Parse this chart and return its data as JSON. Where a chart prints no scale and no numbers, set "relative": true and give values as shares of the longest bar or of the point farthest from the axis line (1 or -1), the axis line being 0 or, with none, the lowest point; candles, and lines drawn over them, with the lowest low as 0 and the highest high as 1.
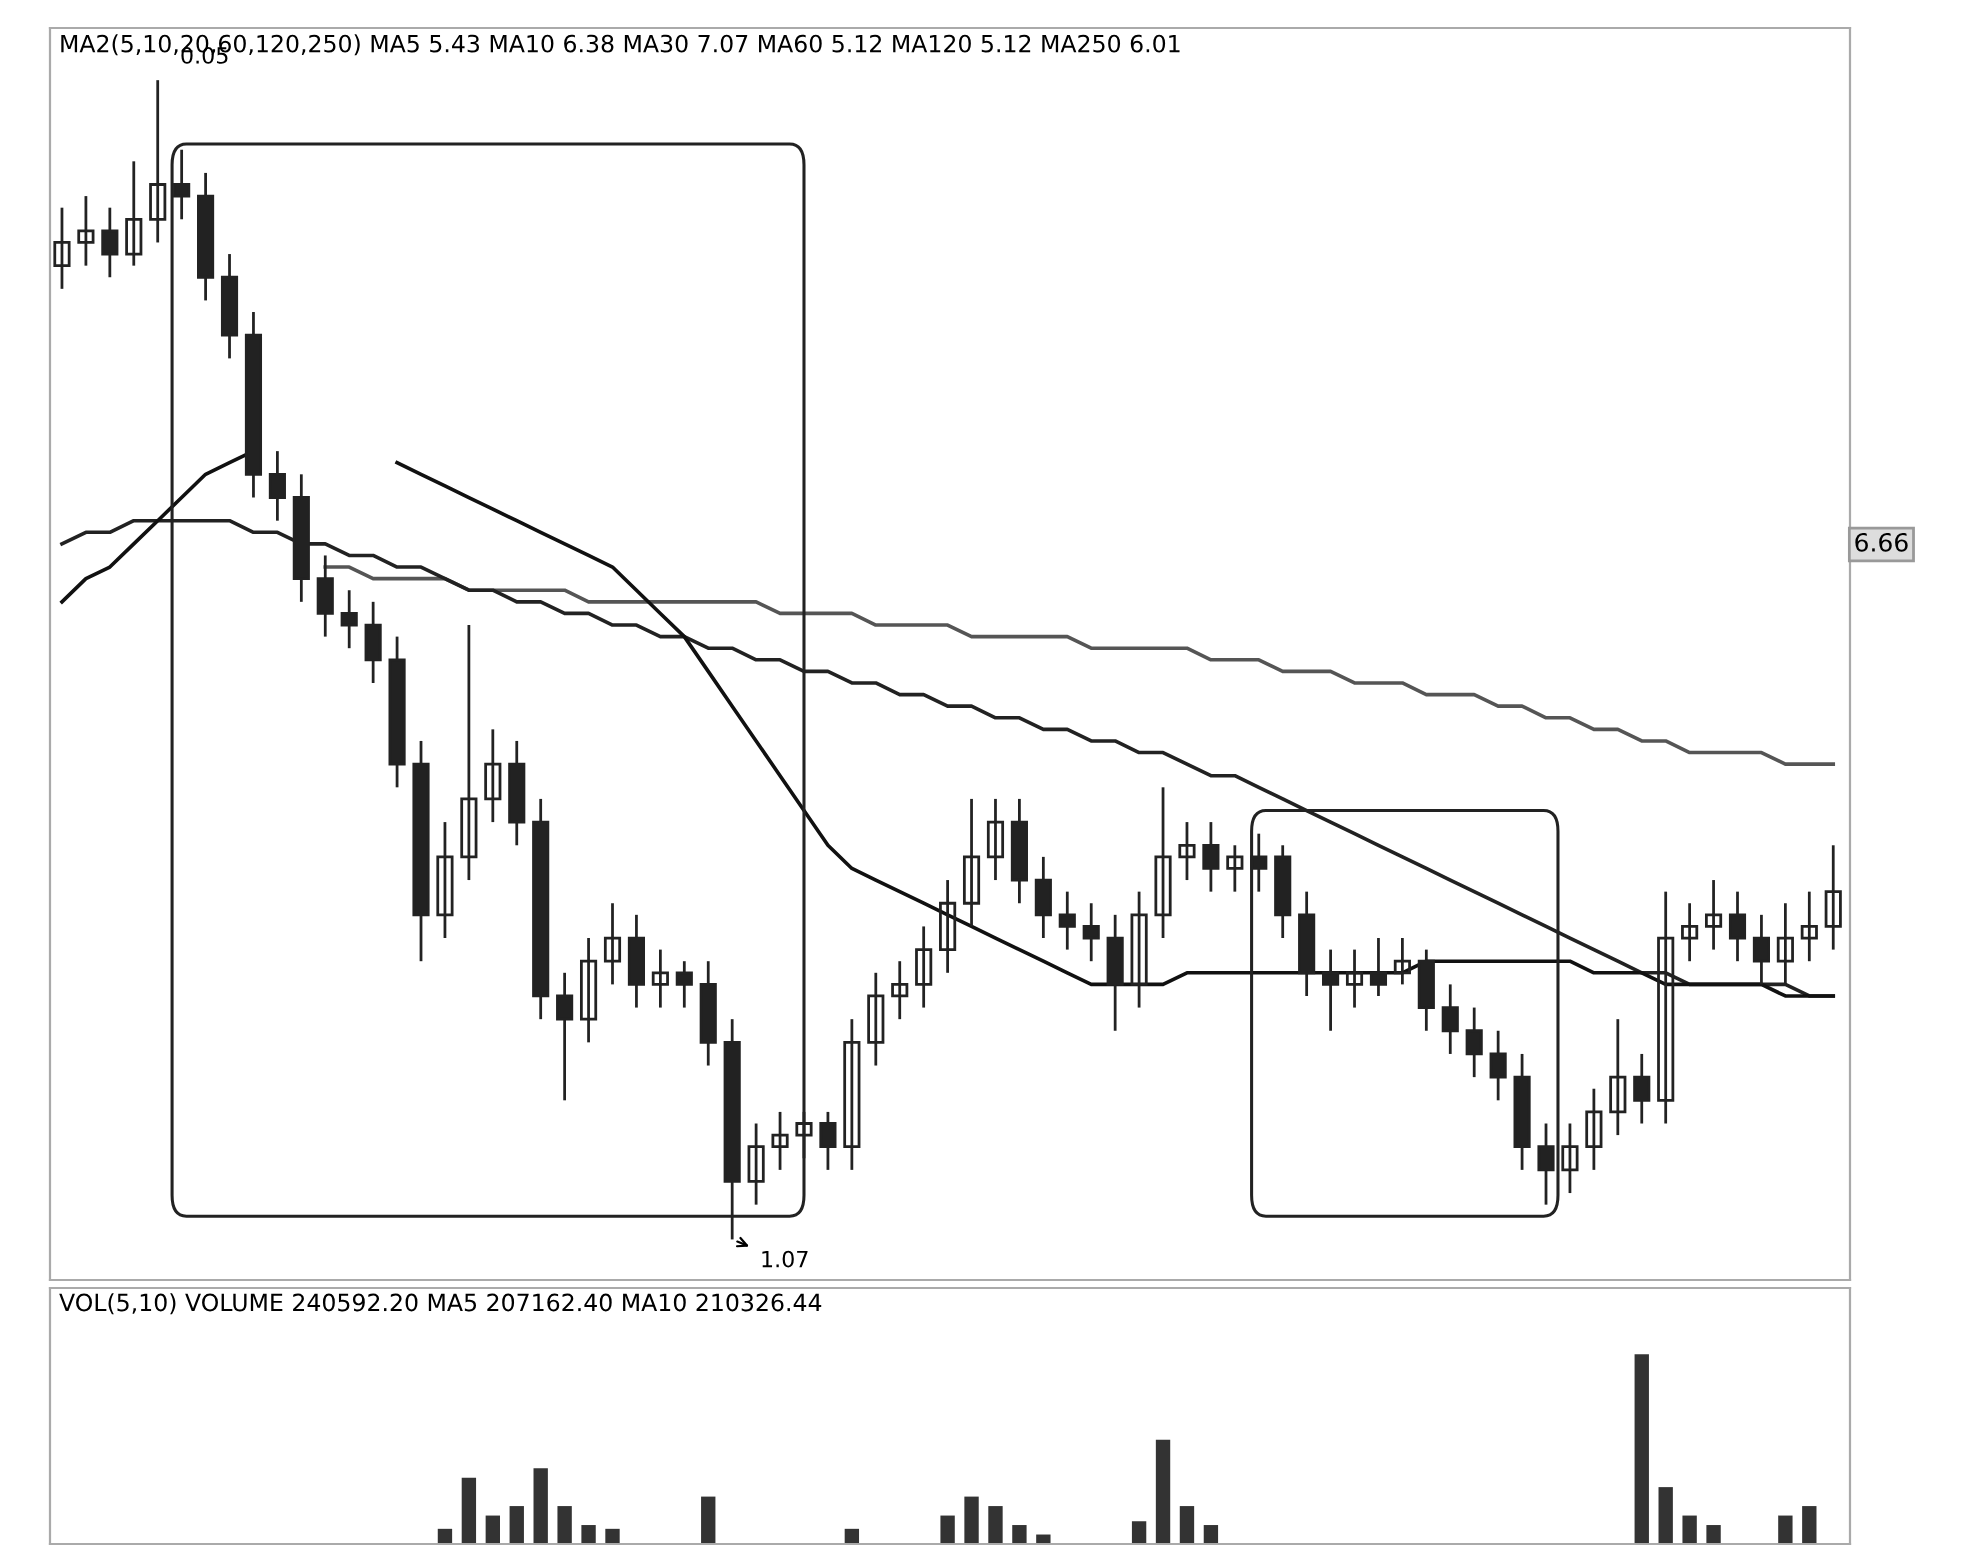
{
  "chart_data": [
    {
      "type": "candlestick",
      "relative": true,
      "color": "#222222",
      "legend": false,
      "categories": [
        null,
        null,
        null,
        null,
        null,
        null,
        null,
        null,
        null,
        null,
        null,
        null,
        null,
        null,
        null,
        null,
        null,
        null,
        null,
        null,
        null,
        null,
        null,
        null,
        null,
        null,
        null,
        null,
        null,
        null,
        null,
        null,
        null,
        null,
        null,
        null,
        null,
        null,
        null,
        null,
        null,
        null,
        null,
        null,
        null,
        null,
        null,
        null,
        null,
        null,
        null,
        null,
        null,
        null,
        null,
        null,
        null,
        null,
        null,
        null,
        null,
        null,
        null,
        null,
        null,
        null,
        null,
        null,
        null,
        null,
        null,
        null,
        null,
        null,
        null
      ],
      "ohlc": [
        [
          0.84,
          0.89,
          0.82,
          0.86
        ],
        [
          0.86,
          0.9,
          0.84,
          0.87
        ],
        [
          0.87,
          0.89,
          0.83,
          0.85
        ],
        [
          0.85,
          0.93,
          0.84,
          0.88
        ],
        [
          0.88,
          1.0,
          0.86,
          0.91
        ],
        [
          0.91,
          0.94,
          0.88,
          0.9
        ],
        [
          0.9,
          0.92,
          0.81,
          0.83
        ],
        [
          0.83,
          0.85,
          0.76,
          0.78
        ],
        [
          0.78,
          0.8,
          0.64,
          0.66
        ],
        [
          0.66,
          0.68,
          0.62,
          0.64
        ],
        [
          0.64,
          0.66,
          0.55,
          0.57
        ],
        [
          0.57,
          0.59,
          0.52,
          0.54
        ],
        [
          0.54,
          0.56,
          0.51,
          0.53
        ],
        [
          0.53,
          0.55,
          0.48,
          0.5
        ],
        [
          0.5,
          0.52,
          0.39,
          0.41
        ],
        [
          0.41,
          0.43,
          0.24,
          0.28
        ],
        [
          0.28,
          0.36,
          0.26,
          0.33
        ],
        [
          0.33,
          0.53,
          0.31,
          0.38
        ],
        [
          0.38,
          0.44,
          0.36,
          0.41
        ],
        [
          0.41,
          0.43,
          0.34,
          0.36
        ],
        [
          0.36,
          0.38,
          0.19,
          0.21
        ],
        [
          0.21,
          0.23,
          0.12,
          0.19
        ],
        [
          0.19,
          0.26,
          0.17,
          0.24
        ],
        [
          0.24,
          0.29,
          0.22,
          0.26
        ],
        [
          0.26,
          0.28,
          0.2,
          0.22
        ],
        [
          0.22,
          0.25,
          0.2,
          0.23
        ],
        [
          0.23,
          0.24,
          0.2,
          0.22
        ],
        [
          0.22,
          0.24,
          0.15,
          0.17
        ],
        [
          0.17,
          0.19,
          0.0,
          0.05
        ],
        [
          0.05,
          0.1,
          0.03,
          0.08
        ],
        [
          0.08,
          0.11,
          0.06,
          0.09
        ],
        [
          0.09,
          0.11,
          0.07,
          0.1
        ],
        [
          0.1,
          0.11,
          0.06,
          0.08
        ],
        [
          0.08,
          0.19,
          0.06,
          0.17
        ],
        [
          0.17,
          0.23,
          0.15,
          0.21
        ],
        [
          0.21,
          0.24,
          0.19,
          0.22
        ],
        [
          0.22,
          0.27,
          0.2,
          0.25
        ],
        [
          0.25,
          0.31,
          0.23,
          0.29
        ],
        [
          0.29,
          0.38,
          0.27,
          0.33
        ],
        [
          0.33,
          0.38,
          0.31,
          0.36
        ],
        [
          0.36,
          0.38,
          0.29,
          0.31
        ],
        [
          0.31,
          0.33,
          0.26,
          0.28
        ],
        [
          0.28,
          0.3,
          0.25,
          0.27
        ],
        [
          0.27,
          0.29,
          0.24,
          0.26
        ],
        [
          0.26,
          0.28,
          0.18,
          0.22
        ],
        [
          0.22,
          0.3,
          0.2,
          0.28
        ],
        [
          0.28,
          0.39,
          0.26,
          0.33
        ],
        [
          0.33,
          0.36,
          0.31,
          0.34
        ],
        [
          0.34,
          0.36,
          0.3,
          0.32
        ],
        [
          0.32,
          0.34,
          0.3,
          0.33
        ],
        [
          0.33,
          0.35,
          0.3,
          0.32
        ],
        [
          0.33,
          0.34,
          0.26,
          0.28
        ],
        [
          0.28,
          0.3,
          0.21,
          0.23
        ],
        [
          0.23,
          0.25,
          0.18,
          0.22
        ],
        [
          0.22,
          0.25,
          0.2,
          0.23
        ],
        [
          0.23,
          0.26,
          0.21,
          0.22
        ],
        [
          0.23,
          0.26,
          0.22,
          0.24
        ],
        [
          0.24,
          0.25,
          0.18,
          0.2
        ],
        [
          0.2,
          0.22,
          0.16,
          0.18
        ],
        [
          0.18,
          0.2,
          0.14,
          0.16
        ],
        [
          0.16,
          0.18,
          0.12,
          0.14
        ],
        [
          0.14,
          0.16,
          0.06,
          0.08
        ],
        [
          0.08,
          0.1,
          0.03,
          0.06
        ],
        [
          0.06,
          0.1,
          0.04,
          0.08
        ],
        [
          0.08,
          0.13,
          0.06,
          0.11
        ],
        [
          0.11,
          0.19,
          0.09,
          0.14
        ],
        [
          0.14,
          0.16,
          0.1,
          0.12
        ],
        [
          0.12,
          0.3,
          0.1,
          0.26
        ],
        [
          0.26,
          0.29,
          0.24,
          0.27
        ],
        [
          0.27,
          0.31,
          0.25,
          0.28
        ],
        [
          0.28,
          0.3,
          0.24,
          0.26
        ],
        [
          0.26,
          0.28,
          0.22,
          0.24
        ],
        [
          0.24,
          0.29,
          0.22,
          0.26
        ],
        [
          0.26,
          0.3,
          0.24,
          0.27
        ],
        [
          0.27,
          0.34,
          0.25,
          0.3
        ]
      ],
      "series": [
        {
          "type": "line",
          "color": "#555555",
          "values": [
            null,
            null,
            null,
            null,
            null,
            null,
            null,
            null,
            null,
            null,
            null,
            0.58,
            0.58,
            0.57,
            0.57,
            0.57,
            0.57,
            0.56,
            0.56,
            0.56,
            0.56,
            0.56,
            0.55,
            0.55,
            0.55,
            0.55,
            0.55,
            0.55,
            0.55,
            0.55,
            0.54,
            0.54,
            0.54,
            0.54,
            0.53,
            0.53,
            0.53,
            0.53,
            0.52,
            0.52,
            0.52,
            0.52,
            0.52,
            0.51,
            0.51,
            0.51,
            0.51,
            0.51,
            0.5,
            0.5,
            0.5,
            0.49,
            0.49,
            0.49,
            0.48,
            0.48,
            0.48,
            0.47,
            0.47,
            0.47,
            0.46,
            0.46,
            0.45,
            0.45,
            0.44,
            0.44,
            0.43,
            0.43,
            0.42,
            0.42,
            0.42,
            0.42,
            0.41,
            0.41,
            0.41
          ]
        },
        {
          "type": "line",
          "color": "#222222",
          "values": [
            0.6,
            0.61,
            0.61,
            0.62,
            0.62,
            0.62,
            0.62,
            0.62,
            0.61,
            0.61,
            0.6,
            0.6,
            0.59,
            0.59,
            0.58,
            0.58,
            0.57,
            0.56,
            0.56,
            0.55,
            0.55,
            0.54,
            0.54,
            0.53,
            0.53,
            0.52,
            0.52,
            0.51,
            0.51,
            0.5,
            0.5,
            0.49,
            0.49,
            0.48,
            0.48,
            0.47,
            0.47,
            0.46,
            0.46,
            0.45,
            0.45,
            0.44,
            0.44,
            0.43,
            0.43,
            0.42,
            0.42,
            0.41,
            0.4,
            0.4,
            0.39,
            0.38,
            0.37,
            0.36,
            0.35,
            0.34,
            0.33,
            0.32,
            0.31,
            0.3,
            0.29,
            0.28,
            0.27,
            0.26,
            0.25,
            0.24,
            0.23,
            0.23,
            0.22,
            0.22,
            0.22,
            0.22,
            0.22,
            0.21,
            0.21
          ]
        },
        {
          "type": "line",
          "color": "#111111",
          "values": [
            0.55,
            0.57,
            0.58,
            0.6,
            0.62,
            0.64,
            0.66,
            0.67,
            0.68,
            null,
            null,
            null,
            null,
            null,
            0.67,
            0.66,
            0.65,
            0.64,
            0.63,
            0.62,
            0.61,
            0.6,
            0.59,
            0.58,
            0.56,
            0.54,
            0.52,
            0.49,
            0.46,
            0.43,
            0.4,
            0.37,
            0.34,
            0.32,
            0.31,
            0.3,
            0.29,
            0.28,
            0.27,
            0.26,
            0.25,
            0.24,
            0.23,
            0.22,
            0.22,
            0.22,
            0.22,
            0.23,
            0.23,
            0.23,
            0.23,
            0.23,
            0.23,
            0.23,
            0.23,
            0.23,
            0.23,
            0.24,
            0.24,
            0.24,
            0.24,
            0.24,
            0.24,
            0.24,
            0.23,
            0.23,
            0.23,
            0.22,
            0.22,
            0.22,
            0.22,
            0.22,
            0.21,
            0.21,
            0.21
          ]
        }
      ],
      "annotations": [
        "MA2(5,10,20,60,120,250) MA5 5.43 MA10 6.38 MA30 7.07 MA60 5.12 MA120 5.12 MA250 6.01",
        "0.05",
        "1.07",
        "6.66"
      ]
    },
    {
      "type": "bar",
      "relative": true,
      "color": "#333333",
      "legend": false,
      "categories": [
        null,
        null,
        null,
        null,
        null,
        null,
        null,
        null,
        null,
        null,
        null,
        null,
        null,
        null,
        null,
        null,
        null,
        null,
        null,
        null,
        null,
        null,
        null,
        null,
        null,
        null,
        null,
        null,
        null,
        null,
        null,
        null,
        null,
        null,
        null,
        null,
        null,
        null,
        null,
        null,
        null,
        null,
        null,
        null,
        null,
        null,
        null,
        null,
        null,
        null,
        null,
        null,
        null,
        null,
        null,
        null,
        null,
        null,
        null,
        null,
        null,
        null,
        null,
        null,
        null,
        null,
        null,
        null,
        null,
        null,
        null,
        null,
        null,
        null,
        null
      ],
      "values": [
        null,
        null,
        null,
        null,
        null,
        null,
        null,
        null,
        null,
        null,
        null,
        null,
        null,
        null,
        null,
        null,
        0.08,
        0.35,
        0.15,
        0.2,
        0.4,
        0.2,
        0.1,
        0.08,
        null,
        null,
        null,
        0.25,
        null,
        null,
        null,
        null,
        null,
        0.08,
        null,
        null,
        null,
        0.15,
        0.25,
        0.2,
        0.1,
        0.05,
        null,
        null,
        null,
        0.12,
        0.55,
        0.2,
        0.1,
        null,
        null,
        null,
        null,
        null,
        null,
        null,
        null,
        null,
        null,
        null,
        null,
        null,
        null,
        null,
        null,
        null,
        1.0,
        0.3,
        0.15,
        0.1,
        null,
        null,
        0.15,
        0.2,
        null
      ],
      "annotations": [
        "VOL(5,10) VOLUME 240592.20 MA5 207162.40 MA10 210326.44"
      ]
    }
  ]
}
